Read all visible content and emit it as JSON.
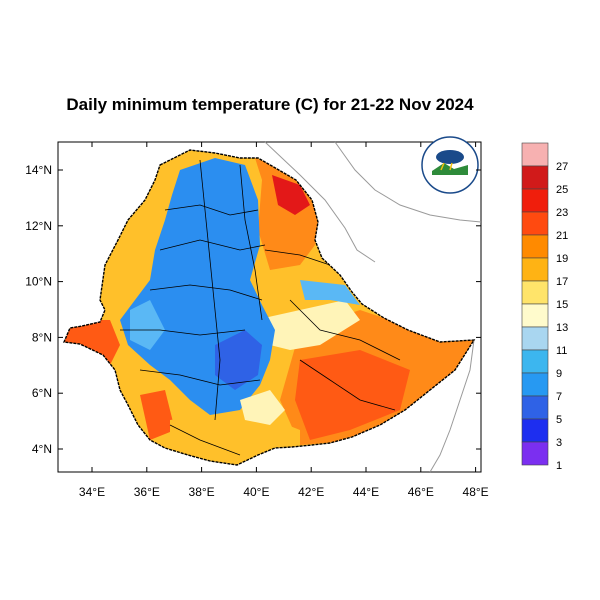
{
  "title": "Daily minimum temperature (C) for 21-22 Nov 2024",
  "map": {
    "lon_ticks": [
      "34°E",
      "36°E",
      "38°E",
      "40°E",
      "42°E",
      "44°E",
      "46°E",
      "48°E"
    ],
    "lat_ticks": [
      "14°N",
      "12°N",
      "10°N",
      "8°N",
      "6°N",
      "4°N"
    ],
    "logo_icon": "ethiopian-meteorology-institute-logo"
  },
  "colorbar": {
    "labels": [
      "27",
      "25",
      "23",
      "21",
      "19",
      "17",
      "15",
      "13",
      "11",
      "9",
      "7",
      "5",
      "3",
      "1"
    ],
    "colors_top_to_bottom": [
      "#f7b1b1",
      "#d11a1a",
      "#f01e0c",
      "#ff4a10",
      "#ff8a00",
      "#ffb314",
      "#ffe46a",
      "#fffbcc",
      "#a9d6f0",
      "#3cb6ef",
      "#2799f2",
      "#2f62e6",
      "#1d2ef0",
      "#7b2ff0"
    ]
  },
  "colors": {
    "cold": "#2b8ef0",
    "cool": "#5ab8f5",
    "mild": "#fff4b8",
    "warm": "#ffc02a",
    "hot": "#ff8a18",
    "very_hot": "#ff5a14",
    "extreme": "#e31818"
  }
}
